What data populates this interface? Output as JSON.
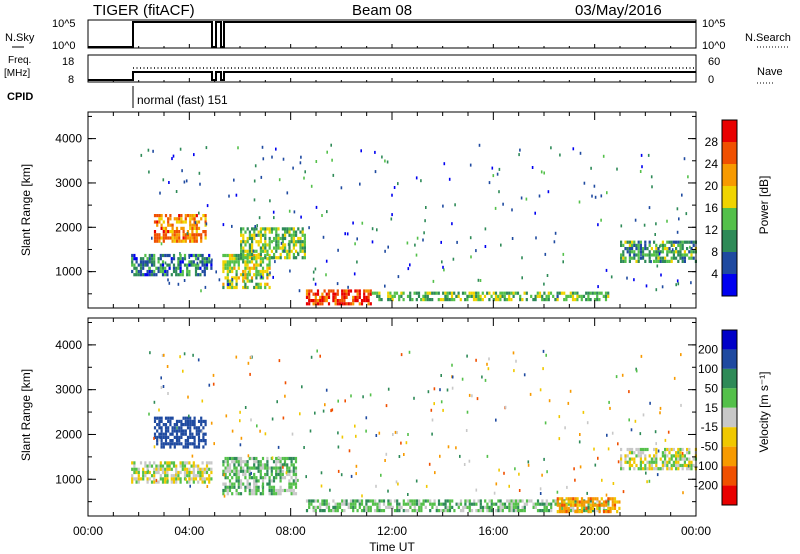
{
  "header": {
    "station": "TIGER (fitACF)",
    "beam": "Beam 08",
    "date": "03/May/2016"
  },
  "top_panels": {
    "nsky_label": "N.Sky",
    "nsky_ticks": [
      "10^5",
      "10^0"
    ],
    "nsearch_ticks": [
      "10^5",
      "10^0"
    ],
    "nsearch_label": "N.Search",
    "freq_label_1": "Freq.",
    "freq_label_2": "[MHz]",
    "freq_ticks": [
      "18",
      "8"
    ],
    "nave_ticks": [
      "60",
      "0"
    ],
    "nave_label": "Nave",
    "cpid_label": "CPID",
    "cpid_text": "normal (fast) 151"
  },
  "power_panel": {
    "ylabel": "Slant Range [km]",
    "yticks": [
      "4000",
      "3000",
      "2000",
      "1000"
    ],
    "colorbar_label": "Power [dB]",
    "colorbar_ticks": [
      "28",
      "24",
      "20",
      "16",
      "12",
      "8",
      "4"
    ],
    "colors": [
      "#0000f0",
      "#1f4aa0",
      "#2e8a57",
      "#54c04a",
      "#f0d400",
      "#f79a00",
      "#f05000",
      "#e80000"
    ]
  },
  "velocity_panel": {
    "ylabel": "Slant Range [km]",
    "yticks": [
      "4000",
      "3000",
      "2000",
      "1000"
    ],
    "colorbar_label": "Velocity [m s⁻¹]",
    "colorbar_ticks": [
      "200",
      "100",
      "50",
      "15",
      "-15",
      "-50",
      "-100",
      "-200"
    ],
    "colors": [
      "#0000c8",
      "#1f4aa0",
      "#2e8a57",
      "#54c04a",
      "#c8c8c8",
      "#f0c800",
      "#f79a00",
      "#f05000",
      "#e80000"
    ]
  },
  "x_axis": {
    "ticks": [
      "00:00",
      "04:00",
      "08:00",
      "12:00",
      "16:00",
      "20:00",
      "00:00"
    ],
    "label": "Time UT"
  },
  "chart_data": [
    {
      "type": "heatmap",
      "title": "Power [dB]",
      "xlabel": "Time UT",
      "ylabel": "Slant Range [km]",
      "xlim_hours": [
        0,
        24
      ],
      "ylim_km": [
        180,
        4600
      ],
      "color_scale": [
        4,
        28
      ],
      "regions": [
        {
          "t0": 1.7,
          "t1": 4.9,
          "r0": 950,
          "r1": 1400,
          "value": 10
        },
        {
          "t0": 2.6,
          "t1": 4.6,
          "r0": 1700,
          "r1": 2300,
          "value": 22
        },
        {
          "t0": 5.3,
          "t1": 7.2,
          "r0": 650,
          "r1": 1400,
          "value": 16
        },
        {
          "t0": 6.0,
          "t1": 8.6,
          "r0": 1300,
          "r1": 2000,
          "value": 14
        },
        {
          "t0": 8.6,
          "t1": 11.2,
          "r0": 300,
          "r1": 600,
          "value": 26
        },
        {
          "t0": 11.2,
          "t1": 20.5,
          "r0": 350,
          "r1": 550,
          "value": 14
        },
        {
          "t0": 21.0,
          "t1": 24.0,
          "r0": 1200,
          "r1": 1700,
          "value": 12
        }
      ]
    },
    {
      "type": "heatmap",
      "title": "Velocity [m s⁻¹]",
      "xlabel": "Time UT",
      "ylabel": "Slant Range [km]",
      "xlim_hours": [
        0,
        24
      ],
      "ylim_km": [
        180,
        4600
      ],
      "color_scale": [
        -200,
        200
      ],
      "regions": [
        {
          "t0": 1.7,
          "t1": 4.9,
          "r0": 950,
          "r1": 1400,
          "value": 0
        },
        {
          "t0": 2.6,
          "t1": 4.6,
          "r0": 1700,
          "r1": 2400,
          "value": 150
        },
        {
          "t0": 5.3,
          "t1": 8.2,
          "r0": 650,
          "r1": 1500,
          "value": 30
        },
        {
          "t0": 8.6,
          "t1": 20.5,
          "r0": 300,
          "r1": 550,
          "value": 30
        },
        {
          "t0": 18.5,
          "t1": 21.0,
          "r0": 300,
          "r1": 600,
          "value": -70
        },
        {
          "t0": 21.0,
          "t1": 24.0,
          "r0": 1200,
          "r1": 1700,
          "value": 0
        }
      ]
    }
  ]
}
